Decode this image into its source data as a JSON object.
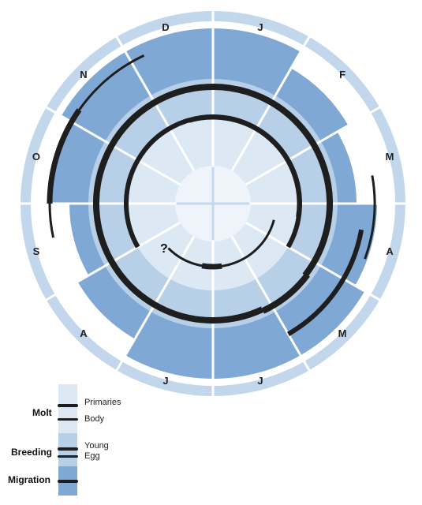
{
  "months": [
    "J",
    "F",
    "M",
    "A",
    "M",
    "J",
    "J",
    "A",
    "S",
    "O",
    "N",
    "D"
  ],
  "question_mark": "?",
  "legend": {
    "groups": [
      {
        "name": "Molt",
        "items": [
          "Primaries",
          "Body"
        ]
      },
      {
        "name": "Breeding",
        "items": [
          "Young",
          "Egg"
        ]
      },
      {
        "name": "Migration",
        "items": []
      }
    ]
  },
  "colors": {
    "ring_molt": "#dce9f5",
    "ring_breeding": "#b7d0e8",
    "ring_migration": "#7fa8d4",
    "outer_rim": "#c3d7ec",
    "arc": "#1e1e1e",
    "divider": "#ffffff"
  },
  "timeline_bars": [
    {
      "name": "migration-spring-outer",
      "band": "Migration",
      "start_month": "M",
      "end_month": "M"
    },
    {
      "name": "migration-spring-inner",
      "band": "Migration",
      "start_month": "M",
      "end_month": "M"
    },
    {
      "name": "migration-autumn",
      "band": "Migration",
      "start_month": "S",
      "end_month": "N"
    },
    {
      "name": "breeding-young",
      "band": "Breeding",
      "start_month": "M",
      "end_month": "D"
    },
    {
      "name": "breeding-egg",
      "band": "Breeding",
      "start_month": "A",
      "end_month": "M"
    },
    {
      "name": "molt-primaries-outer",
      "band": "Molt",
      "start_month": "J",
      "end_month": "A"
    },
    {
      "name": "molt-primaries-inner",
      "band": "Molt",
      "start_month": "A",
      "end_month": "J"
    },
    {
      "name": "molt-body",
      "band": "Molt",
      "start_month": "J",
      "end_month": "M"
    }
  ]
}
